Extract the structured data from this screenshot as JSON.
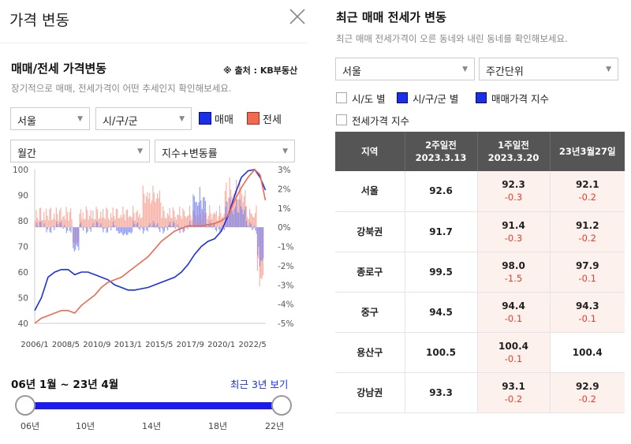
{
  "left": {
    "header_title": "가격 변동",
    "section_title": "매매/전세 가격변동",
    "source": "※ 출처 : KB부동산",
    "subtitle": "장기적으로 매매, 전세가격이 어떤 추세인지 확인해보세요.",
    "region_select": "서울",
    "district_select": "시/구/군",
    "period_select": "월간",
    "metric_select": "지수+변동률",
    "legend": [
      {
        "label": "매매",
        "color": "#1a2fe8"
      },
      {
        "label": "전세",
        "color": "#ef6a4f"
      }
    ],
    "range_label": "06년 1월 ~ 23년 4월",
    "recent_link": "최근 3년 보기",
    "slider_years": [
      "06년",
      "10년",
      "14년",
      "18년",
      "22년"
    ]
  },
  "chart_data": {
    "type": "line",
    "y_left_ticks": [
      "100",
      "90",
      "80",
      "70",
      "60",
      "50",
      "40"
    ],
    "y_right_ticks": [
      "3%",
      "2%",
      "1%",
      "0%",
      "-1%",
      "-2%",
      "-3%",
      "-4%",
      "-5%"
    ],
    "x_ticks": [
      "2006/1",
      "2008/5",
      "2010/9",
      "2013/1",
      "2015/5",
      "2017/9",
      "2020/1",
      "2022/5"
    ],
    "ylim_left": [
      40,
      100
    ],
    "ylim_right": [
      -5,
      3
    ],
    "series": [
      {
        "name": "매매",
        "color": "#1a2fe8",
        "x": [
          2006.0,
          2006.5,
          2007.0,
          2007.5,
          2008.0,
          2008.5,
          2009.0,
          2009.5,
          2010.0,
          2010.5,
          2011.0,
          2011.5,
          2012.0,
          2012.5,
          2013.0,
          2013.5,
          2014.0,
          2014.5,
          2015.0,
          2015.5,
          2016.0,
          2016.5,
          2017.0,
          2017.5,
          2018.0,
          2018.5,
          2019.0,
          2019.5,
          2020.0,
          2020.5,
          2021.0,
          2021.5,
          2022.0,
          2022.5,
          2022.9,
          2023.3
        ],
        "y": [
          45,
          50,
          58,
          60,
          61,
          61,
          59,
          60,
          60,
          59,
          58,
          57,
          55,
          54,
          53,
          53,
          53.5,
          54,
          55,
          56,
          57,
          58,
          60,
          63,
          67,
          70,
          72,
          73,
          76,
          82,
          90,
          97,
          99.5,
          100,
          97,
          92
        ]
      },
      {
        "name": "전세",
        "color": "#ef6a4f",
        "x": [
          2006.0,
          2006.5,
          2007.0,
          2007.5,
          2008.0,
          2008.5,
          2009.0,
          2009.5,
          2010.0,
          2010.5,
          2011.0,
          2011.5,
          2012.0,
          2012.5,
          2013.0,
          2013.5,
          2014.0,
          2014.5,
          2015.0,
          2015.5,
          2016.0,
          2016.5,
          2017.0,
          2017.5,
          2018.0,
          2018.5,
          2019.0,
          2019.5,
          2020.0,
          2020.5,
          2021.0,
          2021.5,
          2022.0,
          2022.5,
          2022.9,
          2023.3
        ],
        "y": [
          40,
          42,
          43,
          44,
          45,
          45,
          44,
          47,
          49,
          51,
          54,
          56,
          57,
          58,
          60,
          62,
          64,
          66,
          69,
          72,
          74,
          76,
          77,
          78,
          78,
          78,
          78.5,
          79,
          80,
          82,
          88,
          93,
          97,
          100,
          98,
          88
        ]
      }
    ]
  },
  "right": {
    "title": "최근 매매 전세가 변동",
    "subtitle": "최근 매매 전세가격이 오른 동네와 내린 동네를 확인해보세요.",
    "region_select": "서울",
    "period_select": "주간단위",
    "checkboxes": [
      {
        "label": "시/도 별",
        "checked": false
      },
      {
        "label": "시/구/군 별",
        "checked": true
      },
      {
        "label": "매매가격 지수",
        "checked": true
      },
      {
        "label": "전세가격 지수",
        "checked": false
      }
    ],
    "table": {
      "headers": [
        {
          "l1": "지역",
          "l2": ""
        },
        {
          "l1": "2주일전",
          "l2": "2023.3.13"
        },
        {
          "l1": "1주일전",
          "l2": "2023.3.20"
        },
        {
          "l1": "23년3월27일",
          "l2": ""
        }
      ],
      "rows": [
        {
          "region": "서울",
          "w2": "92.6",
          "w1": "92.3",
          "w1c": "-0.3",
          "now": "92.1",
          "nowc": "-0.2"
        },
        {
          "region": "강북권",
          "w2": "91.7",
          "w1": "91.4",
          "w1c": "-0.3",
          "now": "91.2",
          "nowc": "-0.2"
        },
        {
          "region": "종로구",
          "w2": "99.5",
          "w1": "98.0",
          "w1c": "-1.5",
          "now": "97.9",
          "nowc": "-0.1"
        },
        {
          "region": "중구",
          "w2": "94.5",
          "w1": "94.4",
          "w1c": "-0.1",
          "now": "94.3",
          "nowc": "-0.1"
        },
        {
          "region": "용산구",
          "w2": "100.5",
          "w1": "100.4",
          "w1c": "-0.1",
          "now": "100.4",
          "nowc": ""
        },
        {
          "region": "강남권",
          "w2": "93.3",
          "w1": "93.1",
          "w1c": "-0.2",
          "now": "92.9",
          "nowc": "-0.2"
        }
      ]
    }
  }
}
